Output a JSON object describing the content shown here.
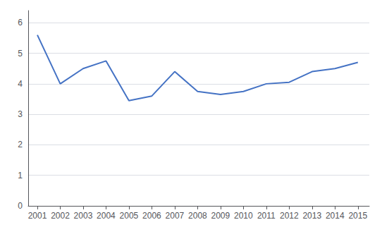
{
  "chart_data": {
    "type": "line",
    "x": [
      2001,
      2002,
      2003,
      2004,
      2005,
      2006,
      2007,
      2008,
      2009,
      2010,
      2011,
      2012,
      2013,
      2014,
      2015
    ],
    "values": [
      5.6,
      4.0,
      4.5,
      4.75,
      3.45,
      3.6,
      4.4,
      3.75,
      3.65,
      3.75,
      4.0,
      4.05,
      4.4,
      4.5,
      4.7
    ],
    "color": "#4472C4",
    "xlim": [
      2000.6,
      2015.5
    ],
    "xticks": [
      2001,
      2002,
      2003,
      2004,
      2005,
      2006,
      2007,
      2008,
      2009,
      2010,
      2011,
      2012,
      2013,
      2014,
      2015
    ],
    "ylim": [
      0,
      6.4
    ],
    "yticks": [
      0,
      1,
      2,
      3,
      4,
      5,
      6
    ],
    "grid": true
  }
}
